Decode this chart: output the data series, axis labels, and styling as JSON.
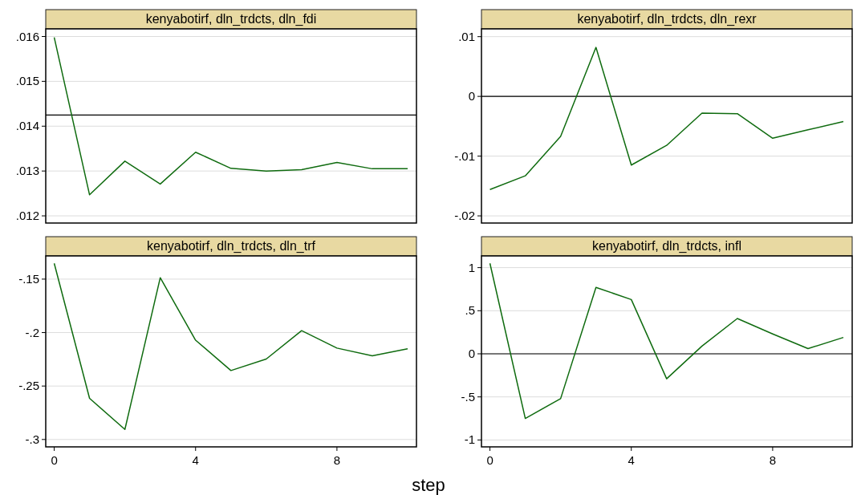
{
  "chart_data": [
    {
      "type": "line",
      "title": "kenyabotirf, dln_trdcts, dln_fdi",
      "x": [
        0,
        1,
        2,
        3,
        4,
        5,
        6,
        7,
        8,
        9,
        10
      ],
      "series": [
        {
          "color": "#0f6b0f",
          "values": [
            0.01598,
            0.01247,
            0.01322,
            0.01271,
            0.01342,
            0.01306,
            0.013,
            0.01303,
            0.01319,
            0.01305,
            0.01305
          ]
        }
      ],
      "xlim": [
        -0.24,
        10.25
      ],
      "ylim": [
        0.01184,
        0.01617
      ],
      "yticks": [
        {
          "value": 0.012,
          "label": ".012"
        },
        {
          "value": 0.013,
          "label": ".013"
        },
        {
          "value": 0.014,
          "label": ".014"
        },
        {
          "value": 0.015,
          "label": ".015"
        },
        {
          "value": 0.016,
          "label": ".016"
        }
      ],
      "grid": "y",
      "ref_lines": [
        {
          "axis": "y",
          "value": 0.01425,
          "color": "#000000"
        }
      ],
      "tick_labels": "y"
    },
    {
      "type": "line",
      "title": "kenyabotirf, dln_trdcts, dln_rexr",
      "x": [
        0,
        1,
        2,
        3,
        4,
        5,
        6,
        7,
        8,
        9,
        10
      ],
      "series": [
        {
          "color": "#0f6b0f",
          "values": [
            -0.0156,
            -0.0133,
            -0.0067,
            0.0082,
            -0.0115,
            -0.0082,
            -0.0028,
            -0.0029,
            -0.007,
            -0.0056,
            -0.0042
          ]
        }
      ],
      "xlim": [
        -0.24,
        10.25
      ],
      "ylim": [
        -0.0212,
        0.0113
      ],
      "yticks": [
        {
          "value": -0.02,
          "label": "-.02"
        },
        {
          "value": -0.01,
          "label": "-.01"
        },
        0,
        {
          "value": 0.01,
          "label": ".01"
        }
      ],
      "grid": "y",
      "ref_lines": [
        {
          "axis": "y",
          "value": 0,
          "color": "#000000"
        }
      ],
      "tick_labels": "y"
    },
    {
      "type": "line",
      "title": "kenyabotirf, dln_trdcts, dln_trf",
      "xlabel": "step",
      "x": [
        0,
        1,
        2,
        3,
        4,
        5,
        6,
        7,
        8,
        9,
        10
      ],
      "series": [
        {
          "color": "#0f6b0f",
          "values": [
            -0.1352,
            -0.2615,
            -0.2906,
            -0.1487,
            -0.2071,
            -0.2355,
            -0.2247,
            -0.1982,
            -0.2145,
            -0.2217,
            -0.2151
          ]
        }
      ],
      "xlim": [
        -0.24,
        10.25
      ],
      "xticks": [
        0,
        4,
        8
      ],
      "ylim": [
        -0.3069,
        -0.1283
      ],
      "yticks": [
        {
          "value": -0.3,
          "label": "-.3"
        },
        {
          "value": -0.25,
          "label": "-.25"
        },
        {
          "value": -0.2,
          "label": "-.2"
        },
        {
          "value": -0.15,
          "label": "-.15"
        }
      ],
      "grid": "y"
    },
    {
      "type": "line",
      "title": "kenyabotirf, dln_trdcts, infl",
      "x": [
        0,
        1,
        2,
        3,
        4,
        5,
        6,
        7,
        8,
        9,
        10
      ],
      "series": [
        {
          "color": "#0f6b0f",
          "values": [
            1.05,
            -0.75,
            -0.52,
            0.77,
            0.63,
            -0.29,
            0.09,
            0.41,
            0.23,
            0.06,
            0.19
          ]
        }
      ],
      "xlim": [
        -0.24,
        10.25
      ],
      "xticks": [
        0,
        4,
        8
      ],
      "ylim": [
        -1.08,
        1.136
      ],
      "yticks": [
        -1,
        {
          "value": -0.5,
          "label": "-.5"
        },
        0,
        {
          "value": 0.5,
          "label": ".5"
        },
        1
      ],
      "grid": "y",
      "ref_lines": [
        {
          "axis": "y",
          "value": 0,
          "color": "#000000"
        }
      ]
    }
  ]
}
